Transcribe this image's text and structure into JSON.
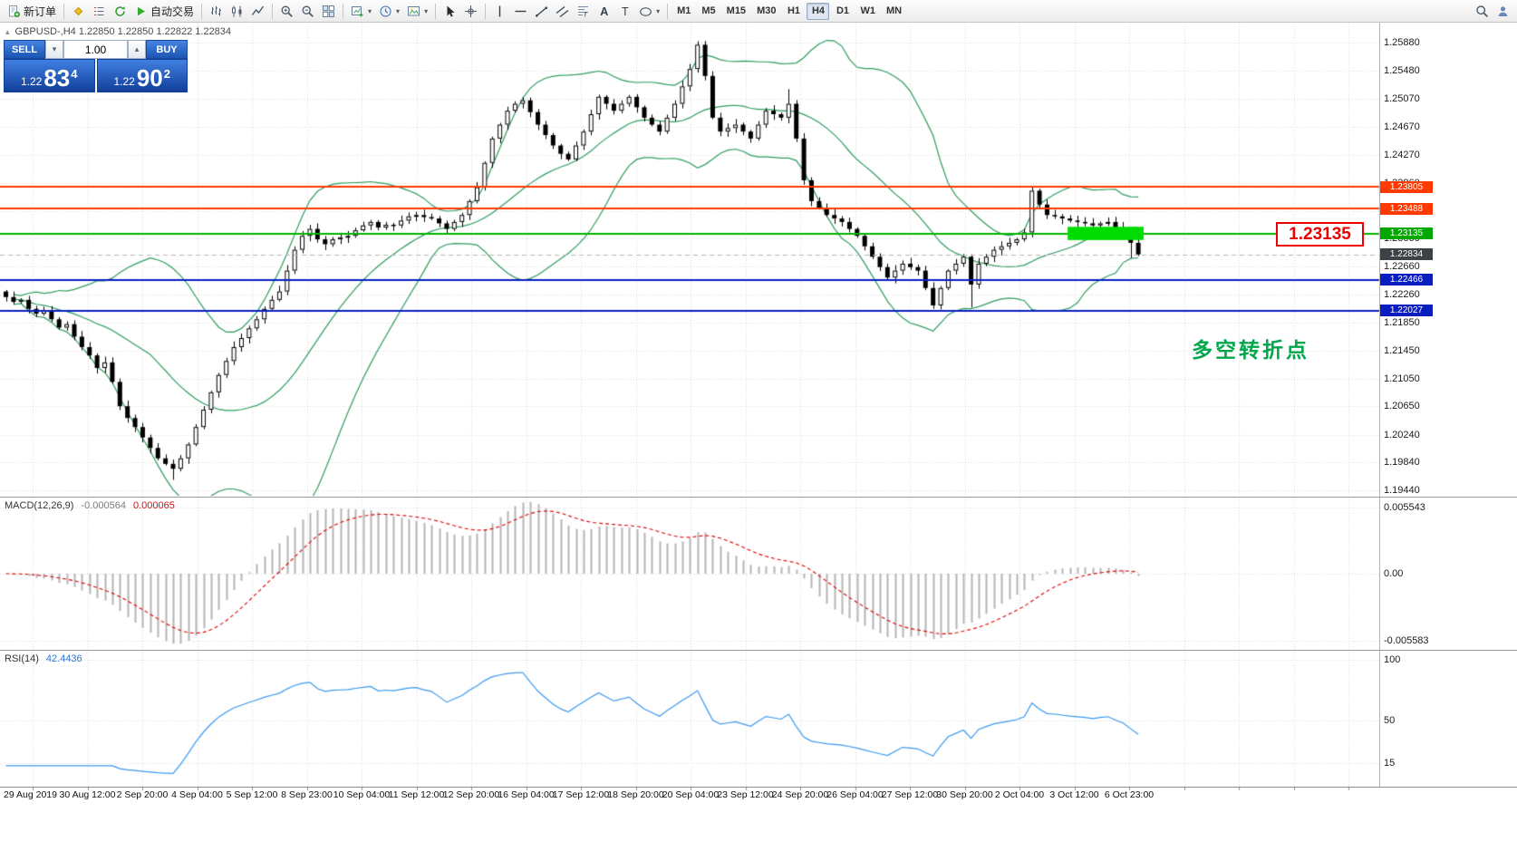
{
  "toolbar": {
    "buttons": [
      {
        "name": "new-order-button",
        "icon": "new-order",
        "label": "新订单"
      },
      {
        "sep": true
      },
      {
        "name": "profile-button",
        "icon": "diamond"
      },
      {
        "name": "market-watch-button",
        "icon": "list"
      },
      {
        "name": "refresh-button",
        "icon": "refresh"
      },
      {
        "name": "autotrading-button",
        "icon": "play",
        "label": "自动交易"
      },
      {
        "sep": true
      },
      {
        "name": "bar-chart-button",
        "icon": "bars"
      },
      {
        "name": "candlestick-chart-button",
        "icon": "candles"
      },
      {
        "name": "line-chart-button",
        "icon": "line"
      },
      {
        "sep": true
      },
      {
        "name": "zoom-in-button",
        "icon": "zoom-in"
      },
      {
        "name": "zoom-out-button",
        "icon": "zoom-out"
      },
      {
        "name": "tile-windows-button",
        "icon": "tile"
      },
      {
        "sep": true
      },
      {
        "name": "new-chart-button",
        "icon": "chart-plus",
        "dropdown": true
      },
      {
        "name": "profiles-menu-button",
        "icon": "clock",
        "dropdown": true
      },
      {
        "name": "templates-button",
        "icon": "template",
        "dropdown": true
      },
      {
        "sep": true
      },
      {
        "name": "cursor-button",
        "icon": "cursor"
      },
      {
        "name": "crosshair-button",
        "icon": "crosshair"
      },
      {
        "sep": true
      },
      {
        "name": "vertical-line-button",
        "icon": "vline"
      },
      {
        "name": "horizontal-line-button",
        "icon": "hline"
      },
      {
        "name": "trendline-button",
        "icon": "trendline"
      },
      {
        "name": "channel-button",
        "icon": "channel"
      },
      {
        "name": "fibonacci-button",
        "icon": "fibo"
      },
      {
        "name": "text-button",
        "icon": "text-a"
      },
      {
        "name": "label-button",
        "icon": "text-t"
      },
      {
        "name": "shapes-button",
        "icon": "shapes",
        "dropdown": true
      },
      {
        "sep": true
      }
    ],
    "timeframes": [
      {
        "label": "M1"
      },
      {
        "label": "M5"
      },
      {
        "label": "M15"
      },
      {
        "label": "M30"
      },
      {
        "label": "H1"
      },
      {
        "label": "H4",
        "active": true
      },
      {
        "label": "D1"
      },
      {
        "label": "W1"
      },
      {
        "label": "MN"
      }
    ],
    "right_buttons": [
      {
        "name": "search-button",
        "icon": "search"
      },
      {
        "name": "community-button",
        "icon": "person"
      }
    ]
  },
  "trade": {
    "sell_label": "SELL",
    "buy_label": "BUY",
    "volume": "1.00",
    "sell_price": {
      "base": "1.22",
      "pips": "83",
      "frac": "4"
    },
    "buy_price": {
      "base": "1.22",
      "pips": "90",
      "frac": "2"
    }
  },
  "overlays": {
    "callout": {
      "text": "1.23135"
    },
    "annotation": {
      "text": "多空转折点"
    }
  },
  "chart_data": {
    "type": "candlestick",
    "symbol": "GBPUSD-",
    "timeframe": "H4",
    "title_line": "GBPUSD-,H4  1.22850 1.22850 1.22822 1.22834",
    "ohlc_display": {
      "open": "1.22850",
      "high": "1.22850",
      "low": "1.22822",
      "close": "1.22834"
    },
    "price_axis": {
      "top_price": 1.2588,
      "bottom_price": 1.1944,
      "ticks": [
        "1.25880",
        "1.25480",
        "1.25070",
        "1.24670",
        "1.24270",
        "1.23860",
        "1.23460",
        "1.23060",
        "1.22660",
        "1.22260",
        "1.21850",
        "1.21450",
        "1.21050",
        "1.20650",
        "1.20240",
        "1.19840",
        "1.19440"
      ]
    },
    "time_axis": {
      "labels": [
        "29 Aug 2019",
        "30 Aug 12:00",
        "2 Sep 20:00",
        "4 Sep 04:00",
        "5 Sep 12:00",
        "8 Sep 23:00",
        "10 Sep 04:00",
        "11 Sep 12:00",
        "12 Sep 20:00",
        "16 Sep 04:00",
        "17 Sep 12:00",
        "18 Sep 20:00",
        "20 Sep 04:00",
        "23 Sep 12:00",
        "24 Sep 20:00",
        "26 Sep 04:00",
        "27 Sep 12:00",
        "30 Sep 20:00",
        "2 Oct 04:00",
        "3 Oct 12:00",
        "6 Oct 23:00"
      ]
    },
    "candles": {
      "first_open": 1.223,
      "base_wick": 0.0007,
      "closes": [
        1.2222,
        1.2215,
        1.2218,
        1.2205,
        1.2198,
        1.2203,
        1.219,
        1.2178,
        1.2183,
        1.2165,
        1.215,
        1.2138,
        1.212,
        1.2128,
        1.21,
        1.2065,
        1.2048,
        1.2035,
        1.202,
        1.2005,
        1.199,
        1.1982,
        1.1975,
        1.199,
        1.201,
        1.2035,
        1.206,
        1.2085,
        1.211,
        1.213,
        1.215,
        1.2163,
        1.2177,
        1.219,
        1.2205,
        1.2218,
        1.223,
        1.226,
        1.229,
        1.231,
        1.232,
        1.2305,
        1.2298,
        1.2305,
        1.2308,
        1.231,
        1.2318,
        1.2325,
        1.233,
        1.2322,
        1.2326,
        1.2325,
        1.2332,
        1.2338,
        1.234,
        1.2337,
        1.2335,
        1.2328,
        1.232,
        1.233,
        1.234,
        1.236,
        1.238,
        1.2415,
        1.245,
        1.247,
        1.249,
        1.25,
        1.2505,
        1.2488,
        1.247,
        1.2455,
        1.244,
        1.2428,
        1.242,
        1.244,
        1.246,
        1.2485,
        1.251,
        1.25,
        1.249,
        1.25,
        1.251,
        1.2495,
        1.248,
        1.247,
        1.246,
        1.248,
        1.25,
        1.2525,
        1.255,
        1.2585,
        1.254,
        1.248,
        1.246,
        1.2465,
        1.247,
        1.246,
        1.245,
        1.247,
        1.249,
        1.2485,
        1.248,
        1.25,
        1.245,
        1.239,
        1.236,
        1.235,
        1.234,
        1.2335,
        1.233,
        1.232,
        1.231,
        1.2295,
        1.228,
        1.2265,
        1.225,
        1.226,
        1.227,
        1.2265,
        1.226,
        1.2235,
        1.221,
        1.2235,
        1.226,
        1.227,
        1.228,
        1.224,
        1.227,
        1.228,
        1.229,
        1.2295,
        1.23,
        1.2305,
        1.2315,
        1.2375,
        1.2355,
        1.234,
        1.2338,
        1.2335,
        1.2332,
        1.233,
        1.2328,
        1.2325,
        1.2328,
        1.233,
        1.2322,
        1.2315,
        1.23,
        1.22834
      ],
      "overrides": {
        "22": {
          "l": 1.1959
        },
        "91": {
          "h": 1.259
        },
        "103": {
          "h": 1.2521
        },
        "122": {
          "l": 1.2205
        },
        "127": {
          "l": 1.2207
        },
        "135": {
          "h": 1.2382
        },
        "148": {
          "l": 1.2278
        }
      }
    },
    "bollinger": {
      "period": 20,
      "deviation": 2,
      "color": "#2f9e5f"
    },
    "levels": [
      {
        "price": 1.23805,
        "label": "1.23805",
        "line_color": "#ff3a00",
        "badge_color": "#ff3a00",
        "width": 2,
        "dash": false
      },
      {
        "price": 1.23488,
        "label": "1.23488",
        "line_color": "#ff3a00",
        "badge_color": "#ff3a00",
        "width": 2,
        "dash": false
      },
      {
        "price": 1.23135,
        "label": "1.23135",
        "line_color": "#00b400",
        "badge_color": "#00a800",
        "width": 2,
        "dash": false
      },
      {
        "price": 1.22834,
        "label": "1.22834",
        "line_color": "#b9b9b9",
        "badge_color": "#3d4248",
        "width": 1,
        "dash": true
      },
      {
        "price": 1.22466,
        "label": "1.22466",
        "line_color": "#0a1ec0",
        "badge_color": "#0a1ec0",
        "width": 2,
        "dash": false
      },
      {
        "price": 1.22027,
        "label": "1.22027",
        "line_color": "#0a1ec0",
        "badge_color": "#0a1ec0",
        "width": 2,
        "dash": false
      }
    ],
    "highlight_rect": {
      "from_index": 140,
      "to_index": 150,
      "top_price": 1.2323,
      "bottom_price": 1.2304,
      "color": "#00dc00"
    },
    "macd": {
      "label": "MACD(12,26,9)",
      "value_main": "-0.000564",
      "value_signal": "0.000065",
      "fast": 12,
      "slow": 26,
      "signal": 9,
      "axis": [
        {
          "text": "0.005543",
          "value": 0.005543
        },
        {
          "text": "0.00",
          "value": 0
        },
        {
          "text": "-0.005583",
          "value": -0.005583
        }
      ],
      "histogram_color": "#b4b4b4",
      "signal_color": "#e00000"
    },
    "rsi": {
      "label": "RSI(14)",
      "value": "42.4436",
      "period": 14,
      "axis": [
        {
          "text": "100",
          "value": 100
        },
        {
          "text": "50",
          "value": 50
        },
        {
          "text": "15",
          "value": 15
        }
      ],
      "color": "#3a9af0"
    }
  }
}
